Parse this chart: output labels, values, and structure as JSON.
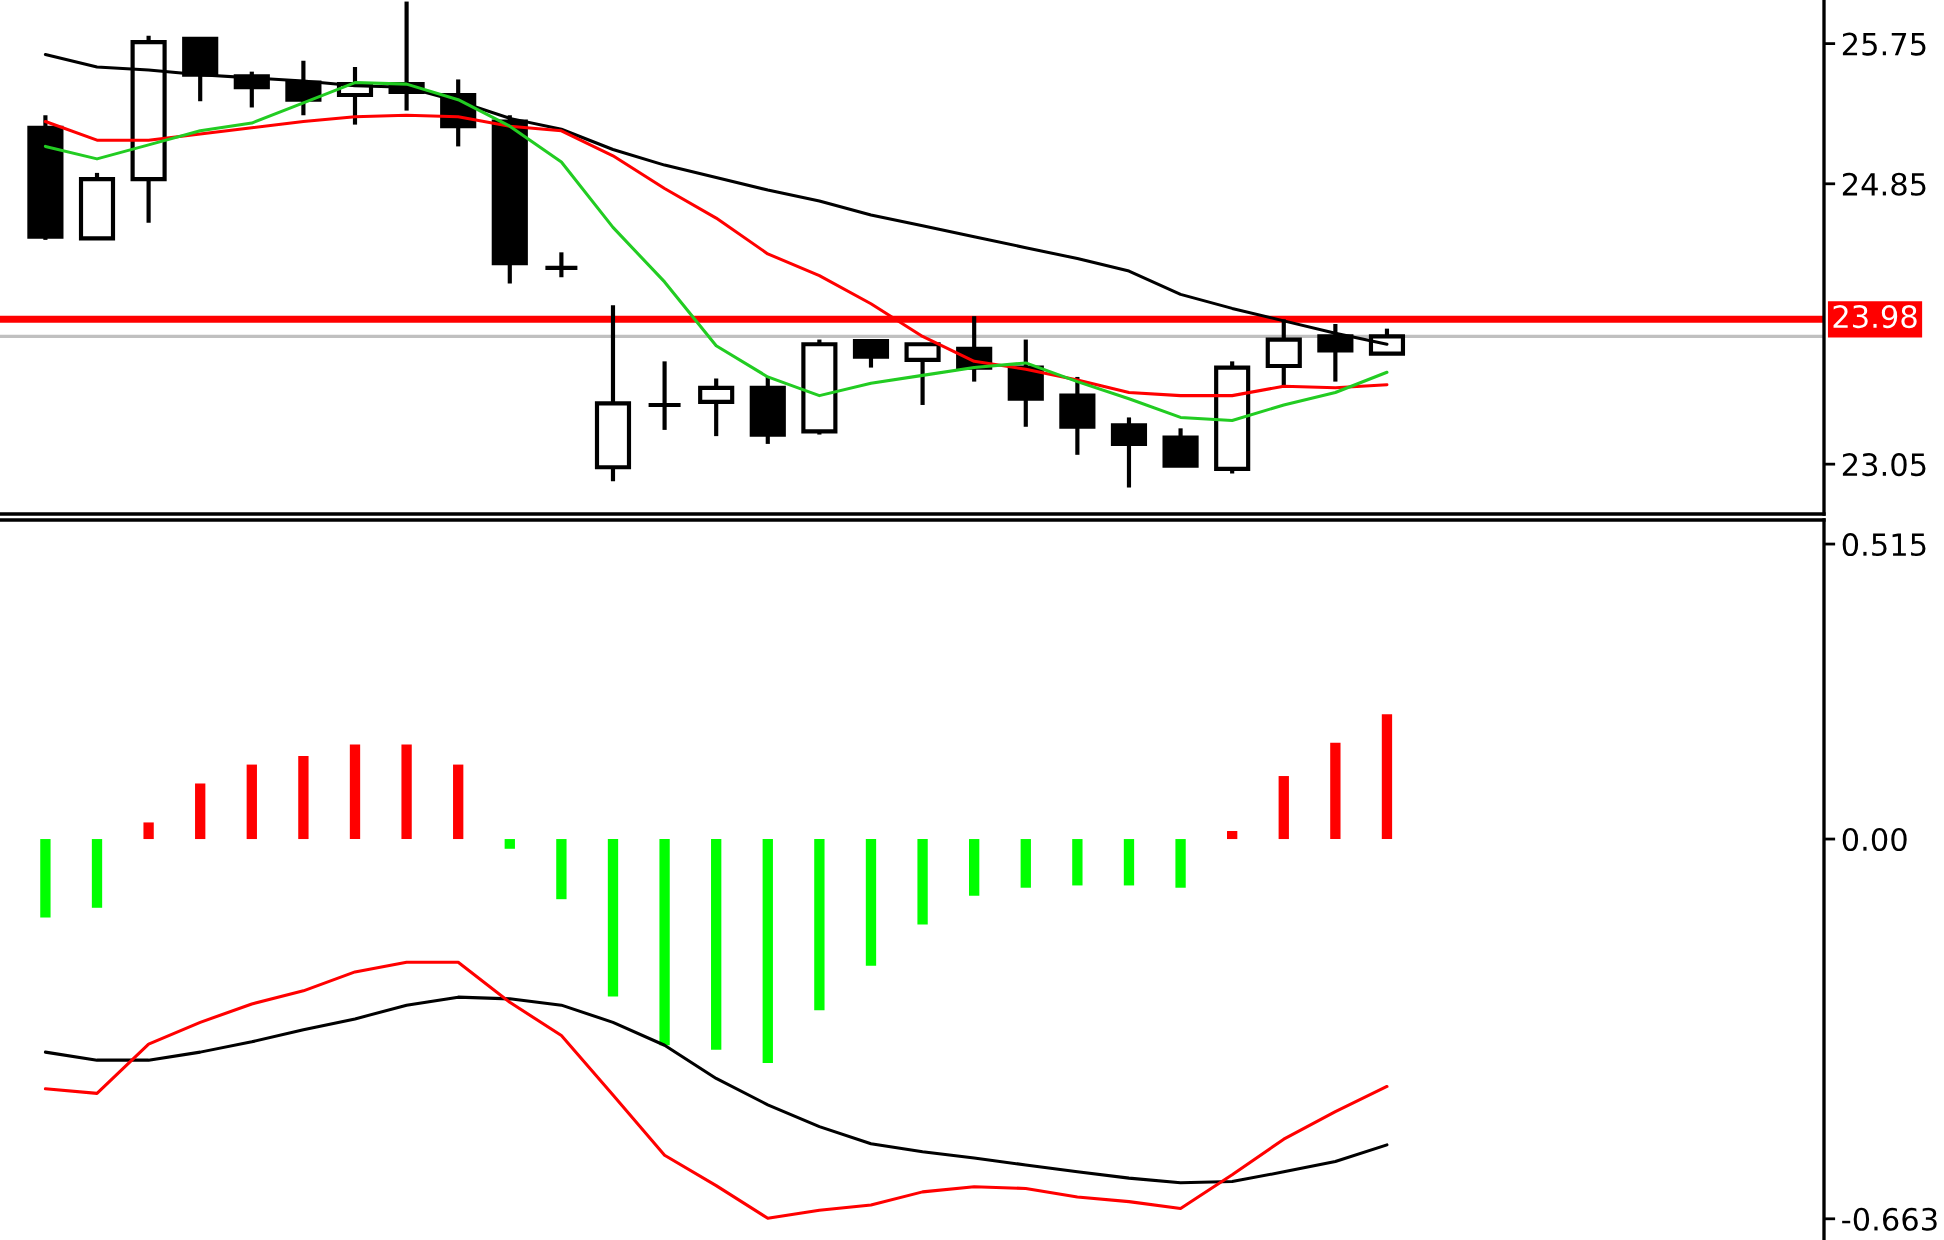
{
  "chart_data": [
    {
      "type": "candlestick",
      "categories": [
        null,
        null,
        null,
        null,
        null,
        null,
        null,
        null,
        null,
        null,
        null,
        null,
        null,
        null,
        null,
        null,
        null,
        null,
        null,
        null,
        null,
        null,
        null,
        null,
        null,
        null,
        null
      ],
      "ohlc": [
        [
          25.21,
          25.29,
          24.49,
          24.51
        ],
        [
          24.5,
          24.92,
          24.5,
          24.88
        ],
        [
          24.88,
          25.8,
          24.6,
          25.76
        ],
        [
          25.78,
          25.78,
          25.38,
          25.55
        ],
        [
          25.54,
          25.57,
          25.34,
          25.47
        ],
        [
          25.5,
          25.64,
          25.29,
          25.39
        ],
        [
          25.42,
          25.6,
          25.23,
          25.49
        ],
        [
          25.49,
          26.02,
          25.32,
          25.44
        ],
        [
          25.42,
          25.52,
          25.09,
          25.22
        ],
        [
          25.25,
          25.29,
          24.21,
          24.34
        ],
        [
          24.31,
          24.41,
          24.25,
          24.31
        ],
        [
          23.03,
          24.07,
          22.94,
          23.44
        ],
        [
          23.43,
          23.71,
          23.27,
          23.43
        ],
        [
          23.45,
          23.6,
          23.23,
          23.54
        ],
        [
          23.54,
          23.61,
          23.18,
          23.24
        ],
        [
          23.26,
          23.85,
          23.24,
          23.82
        ],
        [
          23.84,
          23.84,
          23.67,
          23.74
        ],
        [
          23.72,
          23.82,
          23.43,
          23.82
        ],
        [
          23.79,
          24.0,
          23.58,
          23.67
        ],
        [
          23.67,
          23.85,
          23.29,
          23.47
        ],
        [
          23.49,
          23.61,
          23.11,
          23.29
        ],
        [
          23.3,
          23.35,
          22.9,
          23.18
        ],
        [
          23.22,
          23.28,
          23.04,
          23.04
        ],
        [
          23.02,
          23.71,
          22.99,
          23.67
        ],
        [
          23.68,
          23.98,
          23.55,
          23.85
        ],
        [
          23.87,
          23.95,
          23.58,
          23.78
        ],
        [
          23.76,
          23.92,
          23.76,
          23.87
        ]
      ],
      "colors": [
        "#000000",
        "#ffffff",
        "#ffffff",
        "#000000",
        "#000000",
        "#000000",
        "#ffffff",
        "#000000",
        "#000000",
        "#000000",
        "#000000",
        "#ffffff",
        "#000000",
        "#ffffff",
        "#000000",
        "#ffffff",
        "#000000",
        "#ffffff",
        "#000000",
        "#000000",
        "#000000",
        "#000000",
        "#000000",
        "#ffffff",
        "#ffffff",
        "#000000",
        "#ffffff"
      ],
      "series": [
        {
          "type": "line",
          "color": "#000000",
          "values": [
            25.68,
            25.6,
            25.58,
            25.55,
            25.53,
            25.51,
            25.48,
            25.47,
            25.38,
            25.27,
            25.2,
            25.07,
            24.97,
            24.89,
            24.81,
            24.74,
            24.65,
            24.58,
            24.51,
            24.44,
            24.37,
            24.29,
            24.14,
            24.05,
            23.97,
            23.89,
            23.82
          ]
        },
        {
          "type": "line",
          "color": "#ff0000",
          "values": [
            25.25,
            25.13,
            25.13,
            25.17,
            25.21,
            25.25,
            25.28,
            25.29,
            25.28,
            25.22,
            25.19,
            25.03,
            24.82,
            24.63,
            24.4,
            24.26,
            24.08,
            23.87,
            23.71,
            23.66,
            23.59,
            23.51,
            23.49,
            23.49,
            23.55,
            23.54,
            23.56
          ]
        },
        {
          "type": "line",
          "color": "#22cc22",
          "values": [
            25.09,
            25.01,
            25.1,
            25.19,
            25.24,
            25.37,
            25.5,
            25.49,
            25.39,
            25.22,
            24.99,
            24.57,
            24.22,
            23.81,
            23.61,
            23.49,
            23.57,
            23.62,
            23.67,
            23.7,
            23.58,
            23.47,
            23.35,
            23.33,
            23.43,
            23.51,
            23.64
          ]
        }
      ],
      "ylim": [
        22.73,
        26.03
      ],
      "yticks": [
        25.75,
        24.85,
        23.05
      ],
      "ref_lines": [
        {
          "axis": "y",
          "value": 23.98,
          "label": "23.98",
          "color": "#ff0000"
        },
        {
          "axis": "y",
          "value": 23.87,
          "color": "#c0c0c0"
        }
      ]
    },
    {
      "type": "bar",
      "categories": [
        null,
        null,
        null,
        null,
        null,
        null,
        null,
        null,
        null,
        null,
        null,
        null,
        null,
        null,
        null,
        null,
        null,
        null,
        null,
        null,
        null,
        null,
        null,
        null,
        null,
        null,
        null
      ],
      "series": [
        {
          "colors": [
            "#00ff00",
            "#00ff00",
            "#ff0000",
            "#ff0000",
            "#ff0000",
            "#ff0000",
            "#ff0000",
            "#ff0000",
            "#ff0000",
            "#00ff00",
            "#00ff00",
            "#00ff00",
            "#00ff00",
            "#00ff00",
            "#00ff00",
            "#00ff00",
            "#00ff00",
            "#00ff00",
            "#00ff00",
            "#00ff00",
            "#00ff00",
            "#00ff00",
            "#00ff00",
            "#ff0000",
            "#ff0000",
            "#ff0000",
            "#ff0000"
          ],
          "values": [
            -0.137,
            -0.12,
            0.029,
            0.097,
            0.13,
            0.145,
            0.165,
            0.165,
            0.13,
            -0.017,
            -0.105,
            -0.275,
            -0.36,
            -0.368,
            -0.391,
            -0.299,
            -0.221,
            -0.149,
            -0.099,
            -0.085,
            -0.081,
            -0.081,
            -0.085,
            0.014,
            0.11,
            0.168,
            0.218
          ]
        },
        {
          "type": "line",
          "color": "#000000",
          "values": [
            -0.372,
            -0.386,
            -0.386,
            -0.372,
            -0.354,
            -0.333,
            -0.314,
            -0.29,
            -0.276,
            -0.279,
            -0.29,
            -0.32,
            -0.36,
            -0.418,
            -0.464,
            -0.502,
            -0.532,
            -0.546,
            -0.557,
            -0.569,
            -0.581,
            -0.592,
            -0.6,
            -0.598,
            -0.581,
            -0.563,
            -0.534
          ]
        },
        {
          "type": "line",
          "color": "#ff0000",
          "values": [
            -0.436,
            -0.444,
            -0.358,
            -0.32,
            -0.288,
            -0.265,
            -0.232,
            -0.215,
            -0.215,
            -0.285,
            -0.343,
            -0.447,
            -0.552,
            -0.605,
            -0.662,
            -0.648,
            -0.639,
            -0.616,
            -0.607,
            -0.61,
            -0.625,
            -0.633,
            -0.645,
            -0.586,
            -0.524,
            -0.476,
            -0.432
          ]
        }
      ],
      "ylim": [
        -0.7,
        0.557
      ],
      "yticks": [
        0.515,
        {
          "value": 0,
          "label": "0.00"
        },
        -0.663
      ]
    }
  ]
}
